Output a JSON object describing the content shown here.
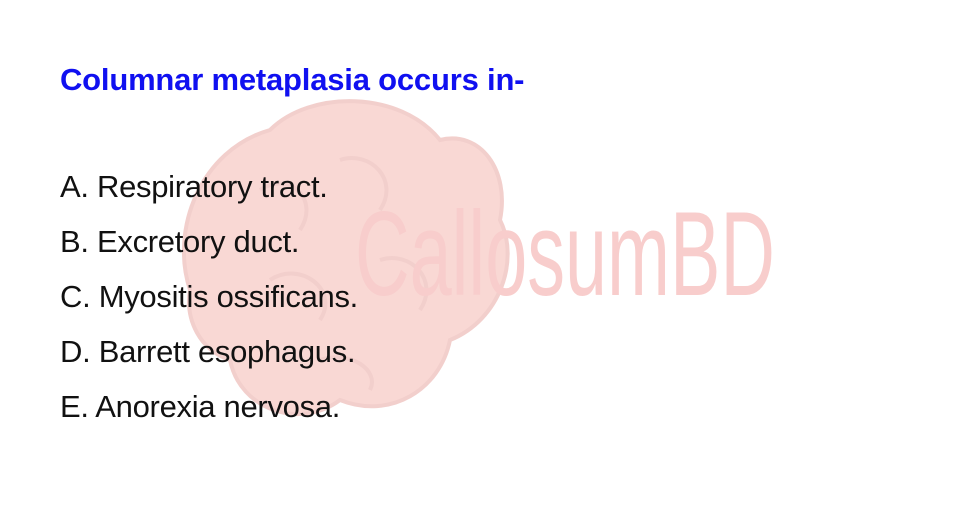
{
  "question": "Columnar metaplasia occurs in-",
  "options": [
    "A. Respiratory tract.",
    "B. Excretory duct.",
    "C. Myositis ossificans.",
    "D. Barrett esophagus.",
    "E. Anorexia nervosa."
  ],
  "watermark": {
    "text": "CallosumBD",
    "color": "#e0201a",
    "icon": "brain-icon"
  },
  "colors": {
    "question": "#1010f0",
    "options": "#111111",
    "background": "#ffffff"
  }
}
